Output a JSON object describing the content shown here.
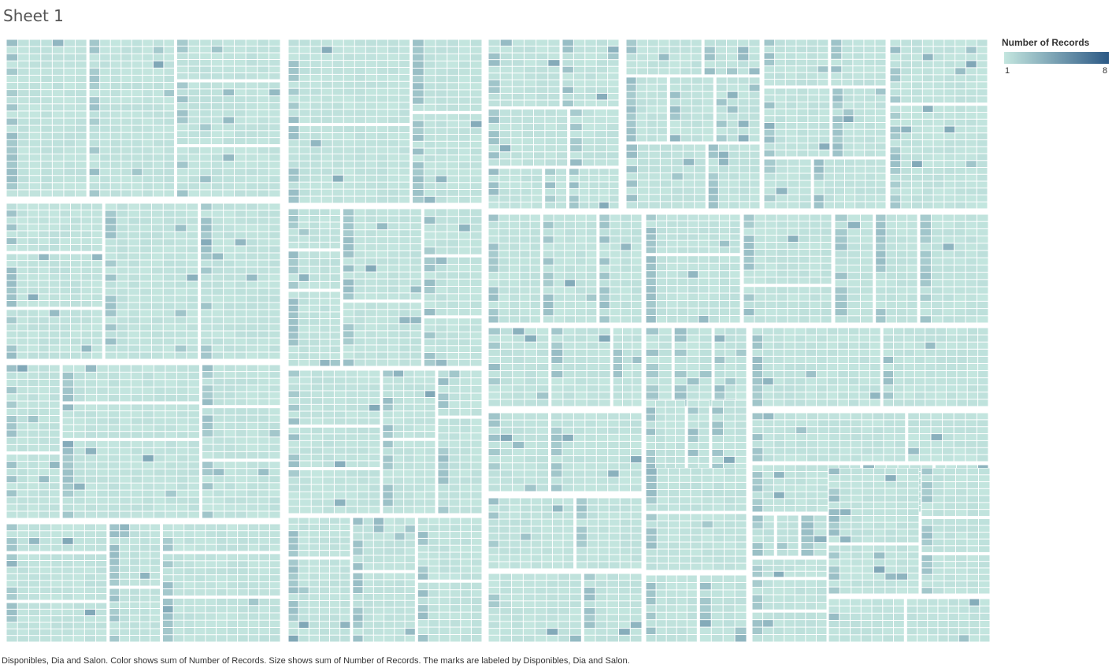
{
  "sheet": {
    "title": "Sheet 1"
  },
  "legend": {
    "title": "Number of Records",
    "min_label": "1",
    "max_label": "8",
    "color_low": "#c4e6df",
    "color_high": "#2c5985"
  },
  "caption": "Disponibles, Dia and Salon.  Color shows sum of Number of Records.  Size shows sum of Number of Records.  The marks are labeled by Disponibles, Dia and Salon.",
  "chart_data": {
    "type": "treemap",
    "levels": [
      "Disponibles",
      "Dia",
      "Salon"
    ],
    "size_measure": "Number of Records",
    "color_measure": "Number of Records",
    "color_range": [
      1,
      8
    ],
    "labels_visible": false,
    "background": "#ffffff"
  }
}
